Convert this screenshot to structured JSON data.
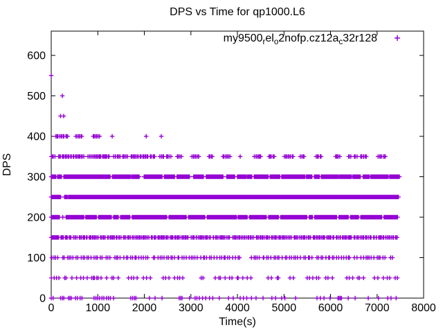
{
  "chart_data": {
    "type": "scatter",
    "title": "DPS vs Time for qp1000.L6",
    "xlabel": "Time(s)",
    "ylabel": "DPS",
    "xlim": [
      0,
      8000
    ],
    "ylim": [
      0,
      660
    ],
    "xticks": [
      0,
      1000,
      2000,
      3000,
      4000,
      5000,
      6000,
      7000,
      8000
    ],
    "yticks": [
      0,
      100,
      200,
      300,
      400,
      500,
      600
    ],
    "grid": false,
    "legend_position": "top-right-inside",
    "marker": "+",
    "marker_color": "#9400D3",
    "axis_color": "#000000",
    "series_label_plain": "my9500_rel_o2nofp.cz12a_c32r128",
    "series_label_parts": [
      {
        "text": "my9500",
        "sub": false
      },
      {
        "text": "r",
        "sub": true
      },
      {
        "text": "el",
        "sub": false
      },
      {
        "text": "o",
        "sub": true
      },
      {
        "text": "2nofp.cz12a",
        "sub": false
      },
      {
        "text": "c",
        "sub": true
      },
      {
        "text": "32r128",
        "sub": false
      }
    ],
    "bands": [
      {
        "dps": 550,
        "points": [
          0
        ]
      },
      {
        "dps": 500,
        "points": [
          240
        ]
      },
      {
        "dps": 450,
        "points": [
          200,
          268
        ]
      },
      {
        "dps": 400,
        "segments": [
          [
            100,
            360,
            "dense"
          ],
          [
            530,
            660,
            "dense"
          ],
          [
            900,
            1040,
            "dense"
          ]
        ],
        "points": [
          1310,
          2040,
          2365
        ]
      },
      {
        "dps": 350,
        "segments": [
          [
            0,
            80,
            "dense"
          ],
          [
            150,
            490,
            "dense"
          ],
          [
            520,
            700,
            "dense"
          ],
          [
            790,
            860,
            "dense"
          ],
          [
            890,
            1150,
            "dense"
          ],
          [
            1170,
            1250,
            "dense"
          ],
          [
            1340,
            1490,
            "dense"
          ],
          [
            1530,
            1640,
            "dense"
          ],
          [
            1710,
            1930,
            "dense"
          ],
          [
            1960,
            2080,
            "dense"
          ],
          [
            2130,
            2230,
            "dense"
          ],
          [
            2330,
            2420,
            "dense"
          ],
          [
            2480,
            2570,
            "dense"
          ],
          [
            2710,
            2800,
            "dense"
          ],
          [
            3020,
            3170,
            "dense"
          ],
          [
            3380,
            3460,
            "dense"
          ],
          [
            3690,
            3840,
            "dense"
          ],
          [
            4360,
            4500,
            "dense"
          ],
          [
            4680,
            4790,
            "dense"
          ],
          [
            5010,
            5200,
            "dense"
          ],
          [
            5350,
            5430,
            "dense"
          ],
          [
            5690,
            5800,
            "dense"
          ],
          [
            6100,
            6200,
            "dense"
          ],
          [
            6390,
            6440,
            "dense"
          ],
          [
            6510,
            6570,
            "dense"
          ],
          [
            6650,
            6770,
            "dense"
          ],
          [
            7020,
            7180,
            "dense"
          ]
        ],
        "points": [
          4060
        ]
      },
      {
        "dps": 300,
        "segments": [
          [
            0,
            100,
            "solid"
          ],
          [
            135,
            220,
            "solid"
          ],
          [
            270,
            1265,
            "solid"
          ],
          [
            1315,
            1700,
            "solid"
          ],
          [
            1725,
            1890,
            "solid"
          ],
          [
            1995,
            2380,
            "solid"
          ],
          [
            2430,
            2650,
            "solid"
          ],
          [
            2700,
            2970,
            "solid"
          ],
          [
            3060,
            3270,
            "solid"
          ],
          [
            3330,
            3690,
            "solid"
          ],
          [
            3770,
            3940,
            "solid"
          ],
          [
            4000,
            4190,
            "solid"
          ],
          [
            4215,
            4310,
            "solid"
          ],
          [
            4360,
            4660,
            "solid"
          ],
          [
            4700,
            4910,
            "solid"
          ],
          [
            4950,
            5080,
            "solid"
          ],
          [
            5100,
            5250,
            "solid"
          ],
          [
            5270,
            5450,
            "solid"
          ],
          [
            5480,
            5600,
            "solid"
          ],
          [
            5655,
            5760,
            "solid"
          ],
          [
            5800,
            6160,
            "solid"
          ],
          [
            6185,
            6450,
            "solid"
          ],
          [
            6480,
            6640,
            "solid"
          ],
          [
            6700,
            6830,
            "solid"
          ],
          [
            6860,
            7080,
            "solid"
          ],
          [
            7100,
            7240,
            "solid"
          ],
          [
            7270,
            7480,
            "solid"
          ]
        ],
        "points": []
      },
      {
        "dps": 250,
        "segments": [
          [
            0,
            200,
            "solid"
          ],
          [
            285,
            345,
            "solid"
          ],
          [
            370,
            7440,
            "solid"
          ]
        ],
        "points": [
          7460
        ]
      },
      {
        "dps": 200,
        "segments": [
          [
            0,
            175,
            "solid"
          ],
          [
            320,
            700,
            "solid"
          ],
          [
            740,
            970,
            "solid"
          ],
          [
            1015,
            1220,
            "solid"
          ],
          [
            1240,
            1290,
            "solid"
          ],
          [
            1340,
            1440,
            "solid"
          ],
          [
            1490,
            1690,
            "solid"
          ],
          [
            1740,
            2480,
            "solid"
          ],
          [
            2530,
            2900,
            "solid"
          ],
          [
            2950,
            3300,
            "solid"
          ],
          [
            3350,
            3980,
            "solid"
          ],
          [
            4015,
            4210,
            "solid"
          ],
          [
            4260,
            4620,
            "solid"
          ],
          [
            4670,
            4880,
            "solid"
          ],
          [
            4930,
            5490,
            "solid"
          ],
          [
            5540,
            5610,
            "solid"
          ],
          [
            5660,
            6130,
            "solid"
          ],
          [
            6180,
            6380,
            "solid"
          ],
          [
            6430,
            6600,
            "solid"
          ],
          [
            6650,
            7100,
            "solid"
          ],
          [
            7150,
            7440,
            "solid"
          ]
        ],
        "points": [
          248
        ]
      },
      {
        "dps": 150,
        "segments": [
          [
            0,
            160,
            "solid"
          ],
          [
            200,
            430,
            "dense"
          ],
          [
            470,
            560,
            "dense"
          ],
          [
            600,
            1010,
            "dense"
          ],
          [
            1060,
            1160,
            "dense"
          ],
          [
            1210,
            1500,
            "dense"
          ],
          [
            1550,
            2100,
            "dense"
          ],
          [
            2150,
            2940,
            "dense"
          ],
          [
            3000,
            3420,
            "dense"
          ],
          [
            3470,
            3840,
            "dense"
          ],
          [
            3900,
            4350,
            "dense"
          ],
          [
            4400,
            4690,
            "dense"
          ],
          [
            4730,
            5160,
            "dense"
          ],
          [
            5220,
            5570,
            "dense"
          ],
          [
            5620,
            6070,
            "dense"
          ],
          [
            6120,
            6450,
            "dense"
          ],
          [
            6500,
            6870,
            "dense"
          ],
          [
            6920,
            7440,
            "dense"
          ]
        ],
        "points": []
      },
      {
        "dps": 100,
        "segments": [
          [
            0,
            140,
            "medium"
          ],
          [
            250,
            1100,
            "medium"
          ],
          [
            1180,
            1260,
            "medium"
          ],
          [
            1350,
            1500,
            "medium"
          ],
          [
            1560,
            2080,
            "medium"
          ],
          [
            2180,
            2900,
            "medium"
          ],
          [
            2960,
            3500,
            "medium"
          ],
          [
            3560,
            3830,
            "medium"
          ],
          [
            3900,
            4060,
            "medium"
          ],
          [
            4300,
            4960,
            "medium"
          ],
          [
            5030,
            5350,
            "medium"
          ],
          [
            5430,
            5600,
            "medium"
          ],
          [
            5700,
            6420,
            "medium"
          ],
          [
            6500,
            6570,
            "medium"
          ],
          [
            6650,
            7180,
            "medium"
          ],
          [
            7280,
            7330,
            "medium"
          ]
        ],
        "points": []
      },
      {
        "dps": 50,
        "segments": [
          [
            0,
            200,
            "sparse"
          ],
          [
            270,
            350,
            "sparse"
          ],
          [
            445,
            545,
            "sparse"
          ],
          [
            620,
            870,
            "sparse"
          ],
          [
            890,
            1070,
            "medium"
          ],
          [
            1190,
            1440,
            "sparse"
          ],
          [
            1660,
            1860,
            "sparse"
          ],
          [
            1980,
            2130,
            "sparse"
          ],
          [
            2380,
            2530,
            "sparse"
          ],
          [
            2630,
            2850,
            "sparse"
          ],
          [
            3200,
            3260,
            "sparse"
          ],
          [
            3500,
            4000,
            "sparse"
          ],
          [
            4015,
            4290,
            "sparse"
          ],
          [
            4660,
            4910,
            "sparse"
          ],
          [
            5130,
            5200,
            "sparse"
          ],
          [
            5500,
            5550,
            "sparse"
          ],
          [
            5620,
            5770,
            "sparse"
          ],
          [
            5870,
            6040,
            "sparse"
          ],
          [
            6340,
            6490,
            "sparse"
          ],
          [
            6590,
            6710,
            "sparse"
          ],
          [
            6940,
            7440,
            "sparse"
          ]
        ],
        "points": []
      },
      {
        "dps": 0,
        "segments": [],
        "points": [
          0,
          40,
          200,
          240,
          270,
          370,
          400,
          430,
          520,
          560,
          620,
          660,
          920,
          960,
          1000,
          1040,
          1090,
          1130,
          1190,
          1230,
          1270,
          1340,
          1710,
          1750,
          1790,
          1820,
          2110,
          2230,
          2380,
          2750,
          2780,
          2810,
          2970,
          3090,
          3130,
          3180,
          3250,
          3320,
          3400,
          3470,
          3610,
          3810,
          3910,
          4060,
          4130,
          4200,
          4300,
          4400,
          4550,
          4740,
          4820,
          4950,
          5020,
          5250,
          5710,
          5780,
          5860,
          5990,
          6160,
          6185,
          6210,
          6235,
          6380,
          6530,
          6810,
          7030,
          7230,
          7300,
          7410
        ]
      }
    ]
  }
}
